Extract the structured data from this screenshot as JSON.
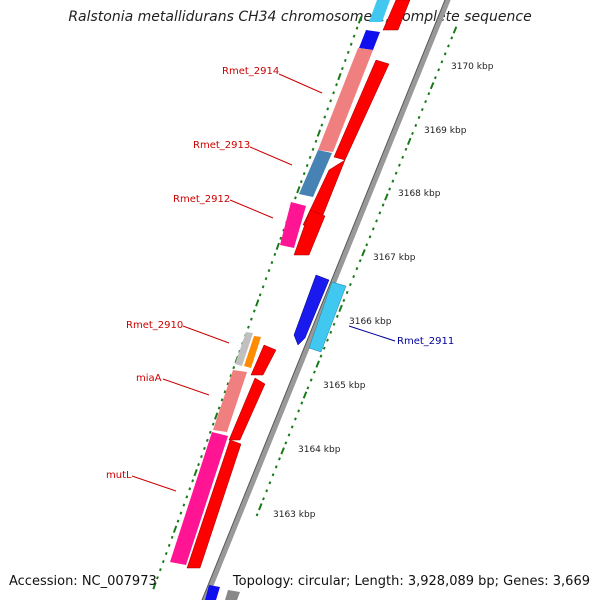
{
  "title": "Ralstonia metallidurans CH34 chromosome 1, complete sequence",
  "footer": {
    "accession": "Accession: NC_007973",
    "summary": "Topology: circular; Length: 3,928,089 bp; Genes: 3,669"
  },
  "scale_labels": [
    "3170 kbp",
    "3169 kbp",
    "3168 kbp",
    "3167 kbp",
    "3166 kbp",
    "3165 kbp",
    "3164 kbp",
    "3163 kbp"
  ],
  "gene_labels": [
    {
      "name": "Rmet_2914",
      "color": "#cc0000"
    },
    {
      "name": "Rmet_2913",
      "color": "#cc0000"
    },
    {
      "name": "Rmet_2912",
      "color": "#cc0000"
    },
    {
      "name": "Rmet_2910",
      "color": "#cc0000"
    },
    {
      "name": "miaA",
      "color": "#cc0000"
    },
    {
      "name": "mutL",
      "color": "#cc0000"
    },
    {
      "name": "Rmet_2911",
      "color": "#000099"
    }
  ],
  "colors": {
    "cds": "#ff0000",
    "rrna_pink": "#f08080",
    "steelblue": "#4682b4",
    "magenta": "#ff1493",
    "blue": "#0000ff",
    "cyan": "#00bfff",
    "orange": "#ff8c00",
    "grey": "#b0b0b0",
    "backbone": "#888888",
    "ticks": "#1a7a1a"
  }
}
